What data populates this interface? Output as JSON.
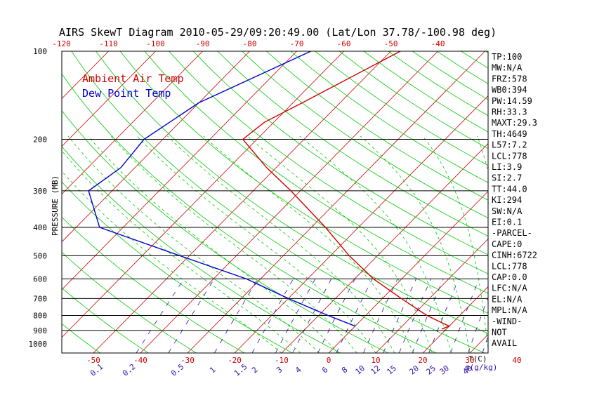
{
  "chart_data": {
    "type": "line",
    "title": "AIRS SkewT Diagram 2010-05-29/09:20:49.00 (Lat/Lon 37.78/-100.98 deg)",
    "ylabel": "PRESSURE (MB)",
    "xlabel": "T(C)",
    "mixing_ratio_unit": "g(g/kg)",
    "grid": true,
    "legend_position": "top-left",
    "legend": [
      {
        "name": "Ambient Air Temp",
        "color": "#cc0000"
      },
      {
        "name": "Dew Point Temp",
        "color": "#0000cc"
      }
    ],
    "pressure_ticks": [
      {
        "p": 100,
        "label": "100"
      },
      {
        "p": 200,
        "label": "200"
      },
      {
        "p": 300,
        "label": "300"
      },
      {
        "p": 400,
        "label": "400"
      },
      {
        "p": 500,
        "label": "500"
      },
      {
        "p": 600,
        "label": "600"
      },
      {
        "p": 700,
        "label": "700"
      },
      {
        "p": 800,
        "label": "800"
      },
      {
        "p": 900,
        "label": "900"
      },
      {
        "p": 1000,
        "label": "1000"
      }
    ],
    "ylim": [
      1080,
      100
    ],
    "top_temp_ticks": [
      "-120",
      "-110",
      "-100",
      "-90",
      "-80",
      "-70",
      "-60",
      "-50",
      "-40"
    ],
    "bottom_temp_ticks": [
      "-50",
      "-40",
      "-30",
      "-20",
      "-10",
      "0",
      "10",
      "20",
      "30",
      "40"
    ],
    "mixing_ratio_ticks": [
      "0.1",
      "0.2",
      "0.5",
      "1",
      "1.5",
      "2",
      "3",
      "4",
      "6",
      "8",
      "10",
      "12",
      "15",
      "20",
      "25",
      "30",
      "40"
    ],
    "series": [
      {
        "name": "Ambient Air Temp",
        "color": "#cc0000",
        "points": [
          {
            "p": 100,
            "t": -48
          },
          {
            "p": 150,
            "t": -58
          },
          {
            "p": 175,
            "t": -62
          },
          {
            "p": 200,
            "t": -63
          },
          {
            "p": 250,
            "t": -52
          },
          {
            "p": 300,
            "t": -42
          },
          {
            "p": 400,
            "t": -27
          },
          {
            "p": 500,
            "t": -16
          },
          {
            "p": 600,
            "t": -6
          },
          {
            "p": 700,
            "t": 4
          },
          {
            "p": 800,
            "t": 13
          },
          {
            "p": 850,
            "t": 18
          },
          {
            "p": 870,
            "t": 20
          },
          {
            "p": 890,
            "t": 19
          }
        ]
      },
      {
        "name": "Dew Point Temp",
        "color": "#0000cc",
        "points": [
          {
            "p": 100,
            "t": -67
          },
          {
            "p": 150,
            "t": -80
          },
          {
            "p": 200,
            "t": -84
          },
          {
            "p": 250,
            "t": -83
          },
          {
            "p": 300,
            "t": -85
          },
          {
            "p": 400,
            "t": -75
          },
          {
            "p": 500,
            "t": -52
          },
          {
            "p": 600,
            "t": -33
          },
          {
            "p": 700,
            "t": -20
          },
          {
            "p": 800,
            "t": -8
          },
          {
            "p": 870,
            "t": 0
          }
        ]
      }
    ]
  },
  "indices": [
    "TP:100",
    "MW:N/A",
    "FRZ:578",
    "WB0:394",
    "PW:14.59",
    "RH:33.3",
    "MAXT:29.3",
    "TH:4649",
    "L57:7.2",
    "LCL:778",
    "LI:3.9",
    "SI:2.7",
    "TT:44.0",
    "KI:294",
    "SW:N/A",
    "EI:0.1",
    "-PARCEL-",
    "CAPE:0",
    "CINH:6722",
    "LCL:778",
    "CAP:0.0",
    "LFC:N/A",
    "EL:N/A",
    "MPL:N/A",
    "-WIND-",
    "NOT",
    "AVAIL"
  ],
  "colors": {
    "isotherm": "#cc0000",
    "dry_adiabat": "#00cc00",
    "moist_adiabat": "#00cc00",
    "mixing_ratio": "#3311aa",
    "isobar": "#000000"
  }
}
